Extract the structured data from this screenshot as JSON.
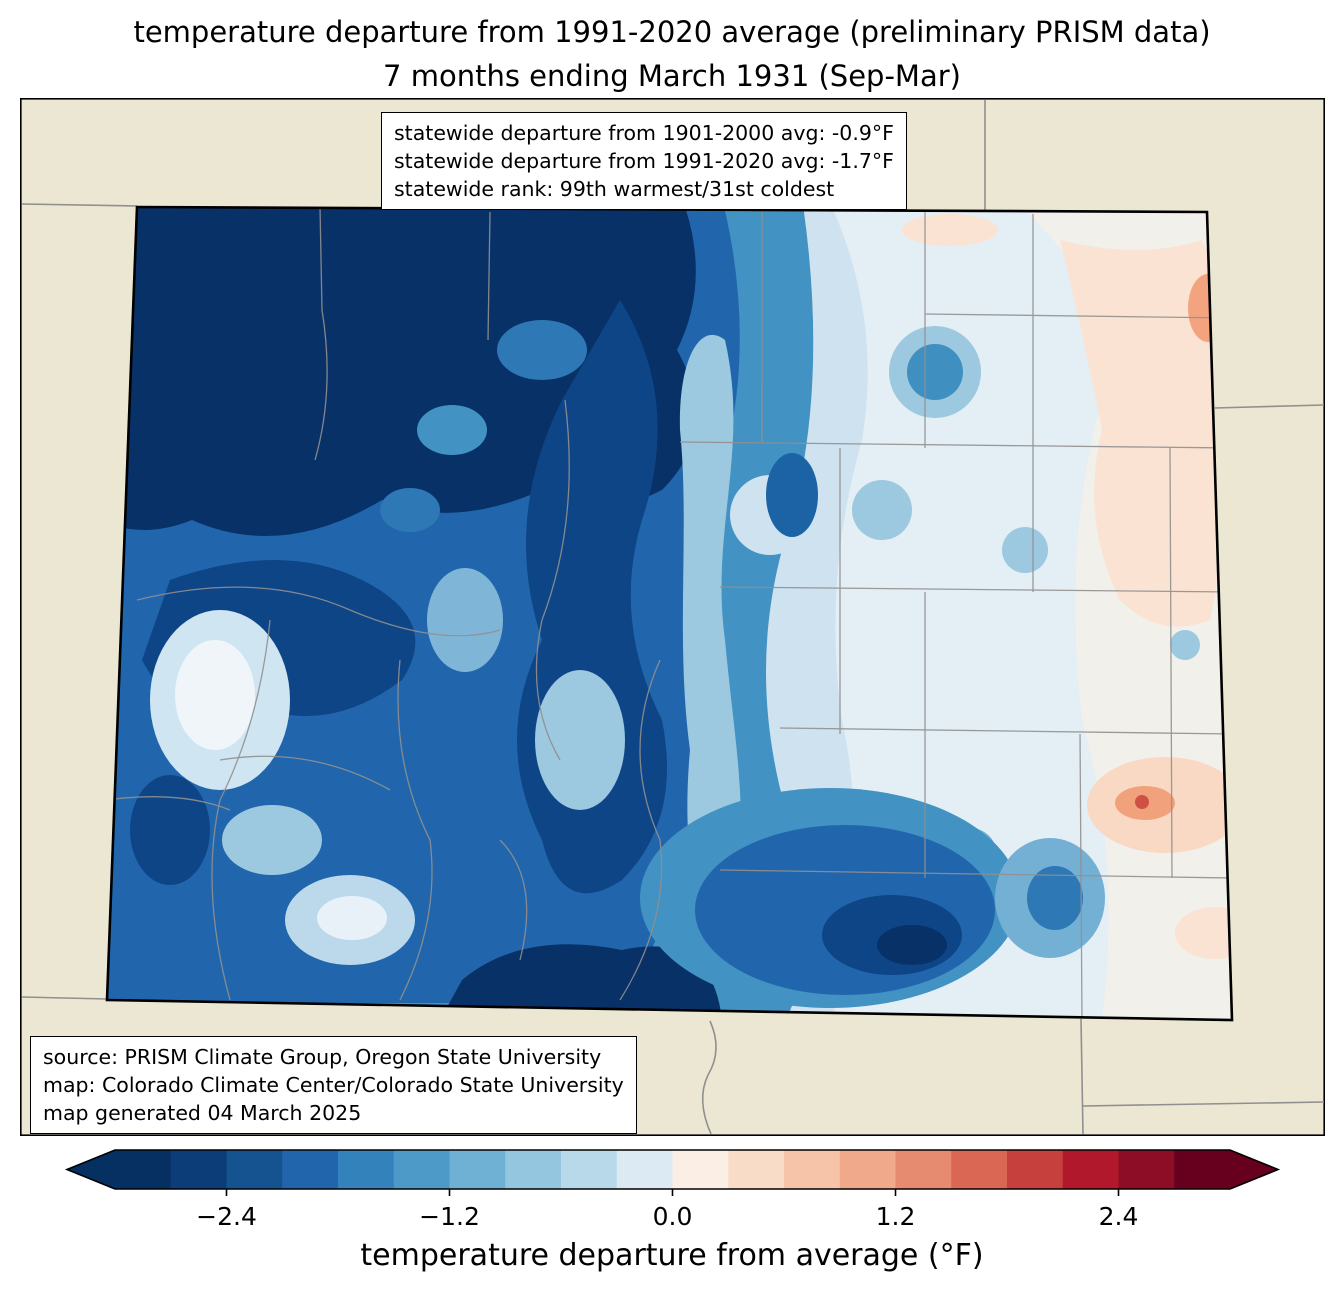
{
  "title": {
    "line1": "temperature departure from 1991-2020 average (preliminary PRISM data)",
    "line2": "7 months ending March 1931 (Sep-Mar)"
  },
  "stats_box": {
    "lines": [
      "statewide departure from 1901-2000 avg: -0.9°F",
      "statewide departure from 1991-2020 avg: -1.7°F",
      "statewide rank: 99th warmest/31st coldest"
    ]
  },
  "source_box": {
    "lines": [
      "source: PRISM Climate Group, Oregon State University",
      "map: Colorado Climate Center/Colorado State University",
      "map generated 04 March 2025"
    ]
  },
  "colorbar": {
    "label": "temperature departure from average (°F)",
    "ticks": [
      "−2.4",
      "−1.2",
      "0.0",
      "1.2",
      "2.4"
    ],
    "tick_values": [
      -2.4,
      -1.2,
      0.0,
      1.2,
      2.4
    ],
    "range": [
      -3.0,
      3.0
    ],
    "segment_step": 0.3,
    "colors": [
      "#053061",
      "#0c3d79",
      "#155290",
      "#2166ac",
      "#3382bb",
      "#4d9ac9",
      "#6fb0d5",
      "#94c6df",
      "#b8d9ea",
      "#dbeaf3",
      "#fbeee4",
      "#f9dcc8",
      "#f5c4a9",
      "#f0a98b",
      "#e78b70",
      "#d96753",
      "#c6413e",
      "#b2182b",
      "#8c0d25",
      "#67001f"
    ],
    "arrow_low_color": "#053061",
    "arrow_high_color": "#67001f"
  },
  "chart_data": {
    "type": "choropleth-map",
    "region": "Colorado",
    "variable": "temperature departure from 1991-2020 average",
    "units": "°F",
    "period": "7 months ending March 1931 (Sep-Mar)",
    "data_source": "preliminary PRISM data",
    "statewide_departure_1901_2000_avg_F": -0.9,
    "statewide_departure_1991_2020_avg_F": -1.7,
    "statewide_rank": "99th warmest/31st coldest",
    "color_scale_range_F": [
      -3.0,
      3.0
    ],
    "color_scale_step_F": 0.3,
    "pattern": "strong cold anomalies (dark blue, below -3°F) over western and mountain Colorado; weak anomalies near zero over eastern plains with small warm (pink/orange) patches along the far eastern border"
  }
}
